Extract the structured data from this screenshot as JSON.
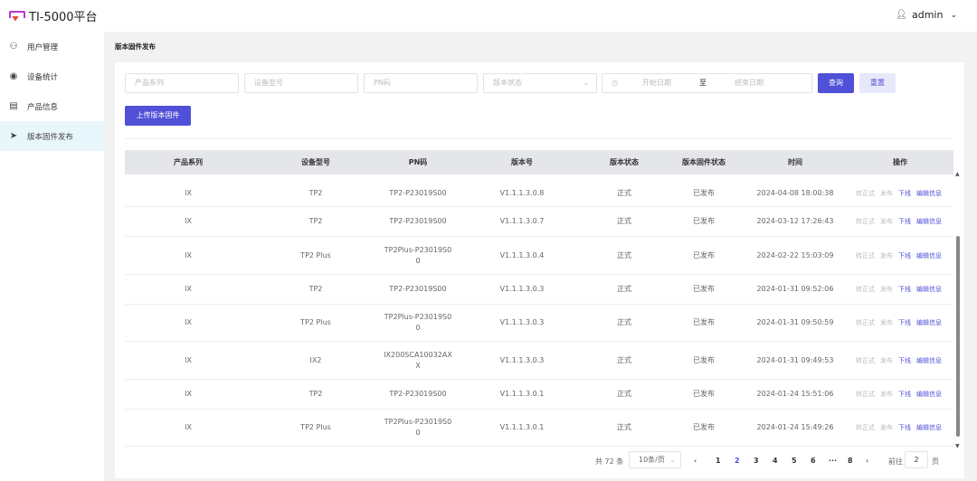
{
  "header": {
    "title": "TI-5000平台",
    "user": "admin"
  },
  "sidebar": {
    "items": [
      {
        "label": "用户管理",
        "icon": "user-icon"
      },
      {
        "label": "设备统计",
        "icon": "webcam-icon"
      },
      {
        "label": "产品信息",
        "icon": "clipboard-icon"
      },
      {
        "label": "版本固件发布",
        "icon": "send-icon",
        "active": true
      }
    ]
  },
  "breadcrumb": "版本固件发布",
  "filters": {
    "product_series": "产品系列",
    "device_model": "设备型号",
    "pn": "PN码",
    "version_status": "版本状态",
    "start_date": "开始日期",
    "to": "至",
    "end_date": "结束日期",
    "query": "查询",
    "reset": "重置",
    "upload": "上传版本固件"
  },
  "table": {
    "columns": [
      "产品系列",
      "设备型号",
      "PN码",
      "版本号",
      "版本状态",
      "版本固件状态",
      "时间",
      "操作"
    ],
    "actions": [
      "转正式",
      "发布",
      "下线",
      "编辑信息"
    ],
    "rows": [
      [
        "IX",
        "TP2",
        "TP2-P23019S00",
        "V1.1.1.3.0.8",
        "正式",
        "已发布",
        "2024-04-08 18:00:38"
      ],
      [
        "IX",
        "TP2",
        "TP2-P23019S00",
        "V1.1.1.3.0.7",
        "正式",
        "已发布",
        "2024-03-12 17:26:43"
      ],
      [
        "IX",
        "TP2 Plus",
        "TP2Plus-P23019S0\n0",
        "V1.1.1.3.0.4",
        "正式",
        "已发布",
        "2024-02-22 15:03:09"
      ],
      [
        "IX",
        "TP2",
        "TP2-P23019S00",
        "V1.1.1.3.0.3",
        "正式",
        "已发布",
        "2024-01-31 09:52:06"
      ],
      [
        "IX",
        "TP2 Plus",
        "TP2Plus-P23019S0\n0",
        "V1.1.1.3.0.3",
        "正式",
        "已发布",
        "2024-01-31 09:50:59"
      ],
      [
        "IX",
        "IX2",
        "IX200SCA10032AX\nX",
        "V1.1.1.3.0.3",
        "正式",
        "已发布",
        "2024-01-31 09:49:53"
      ],
      [
        "IX",
        "TP2",
        "TP2-P23019S00",
        "V1.1.1.3.0.1",
        "正式",
        "已发布",
        "2024-01-24 15:51:06"
      ],
      [
        "IX",
        "TP2 Plus",
        "TP2Plus-P23019S0\n0",
        "V1.1.1.3.0.1",
        "正式",
        "已发布",
        "2024-01-24 15:49:26"
      ]
    ]
  },
  "pagination": {
    "total": "共 72 条",
    "page_size": "10条/页",
    "pages": [
      "1",
      "2",
      "3",
      "4",
      "5",
      "6",
      "···",
      "8"
    ],
    "current": "2",
    "goto_label": "前往",
    "goto_value": "2",
    "page_unit": "页"
  },
  "colors": {
    "accent": "#5050d8",
    "active_nav": "#e8f7fc"
  }
}
